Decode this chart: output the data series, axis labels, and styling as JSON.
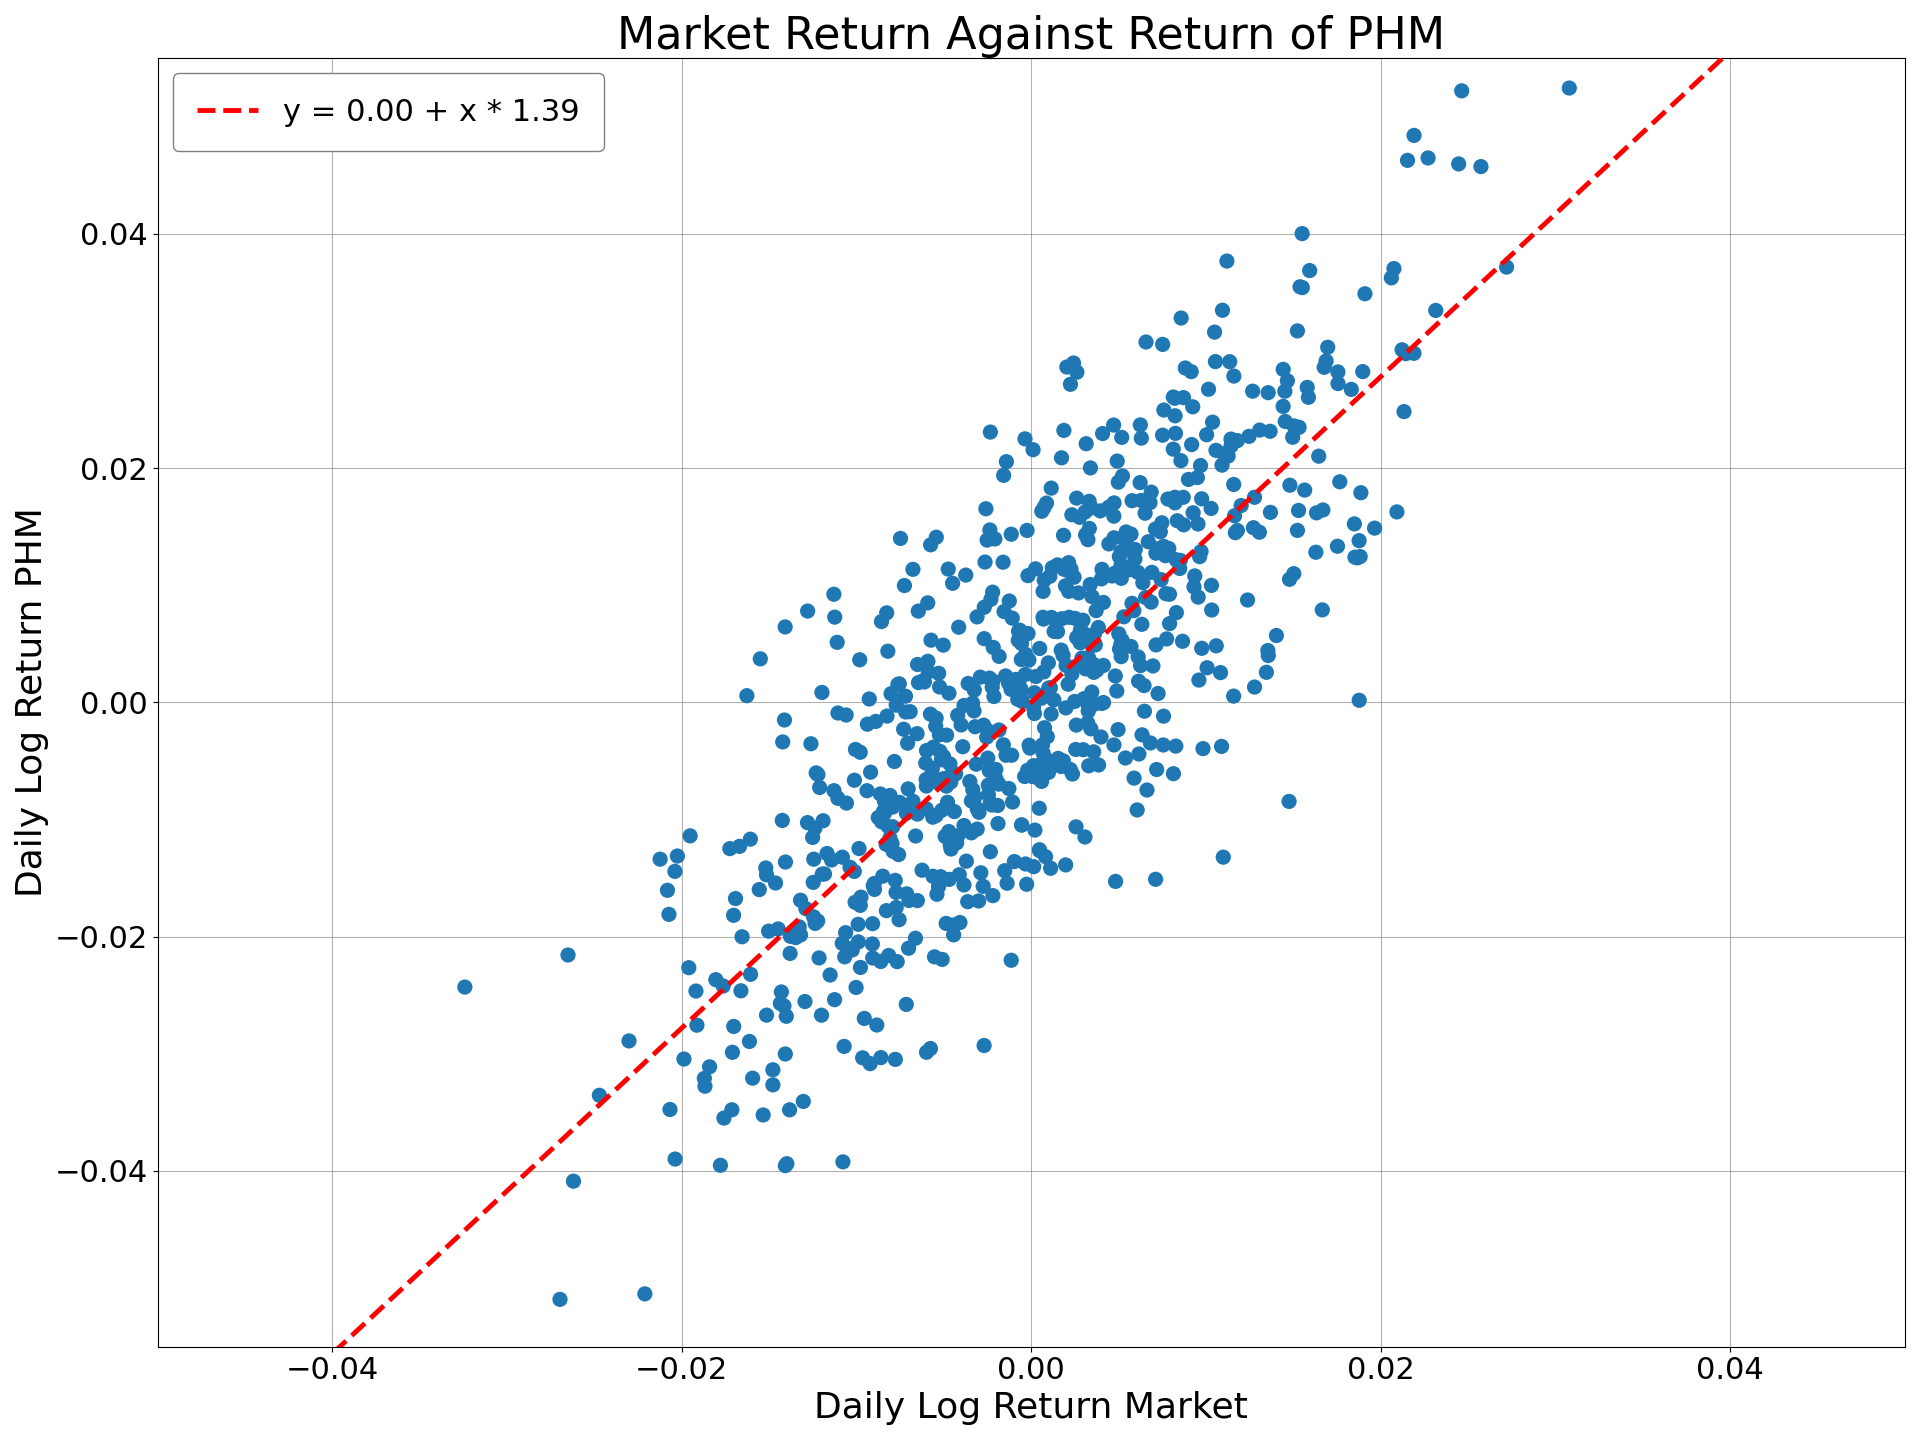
{
  "title": "Market Return Against Return of PHM",
  "xlabel": "Daily Log Return Market",
  "ylabel": "Daily Log Return PHM",
  "legend_label": "y = 0.00 + x * 1.39",
  "intercept": 0.0,
  "slope": 1.39,
  "xlim": [
    -0.05,
    0.05
  ],
  "ylim": [
    -0.055,
    0.055
  ],
  "xticks": [
    -0.04,
    -0.02,
    0.0,
    0.02,
    0.04
  ],
  "yticks": [
    -0.04,
    -0.02,
    0.0,
    0.02,
    0.04
  ],
  "scatter_color": "#1f77b4",
  "line_color": "#ff0000",
  "n_points": 750,
  "seed": 42,
  "market_std": 0.01,
  "noise_std": 0.01,
  "title_fontsize": 32,
  "label_fontsize": 26,
  "tick_fontsize": 22,
  "legend_fontsize": 22,
  "marker_size": 120,
  "marker_alpha": 1.0
}
